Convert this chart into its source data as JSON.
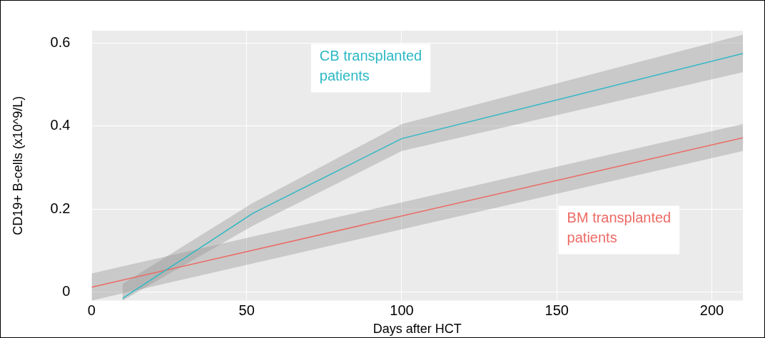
{
  "chart_data": {
    "type": "line",
    "xlabel": "Days after HCT",
    "ylabel": "CD19+ B-cells (x10^9/L)",
    "xlim": [
      0,
      210
    ],
    "xticks": [
      0,
      50,
      100,
      150,
      200
    ],
    "ylim": [
      -0.02,
      0.63
    ],
    "yticks": [
      0,
      0.2,
      0.4,
      0.6
    ],
    "grid": true,
    "legend": false,
    "marker": "none",
    "line_style": "solid",
    "series": [
      {
        "name": "CB transplanted patients",
        "color": "#2cb8c4",
        "x": [
          10,
          52,
          100,
          210
        ],
        "values": [
          -0.015,
          0.19,
          0.37,
          0.575
        ],
        "lower": [
          -0.02,
          0.16,
          0.34,
          0.53
        ],
        "upper": [
          0.02,
          0.215,
          0.405,
          0.62
        ]
      },
      {
        "name": "BM transplanted patients",
        "color": "#ec6a64",
        "x": [
          0,
          210
        ],
        "values": [
          0.012,
          0.372
        ],
        "lower": [
          -0.02,
          0.34
        ],
        "upper": [
          0.045,
          0.405
        ]
      }
    ]
  }
}
